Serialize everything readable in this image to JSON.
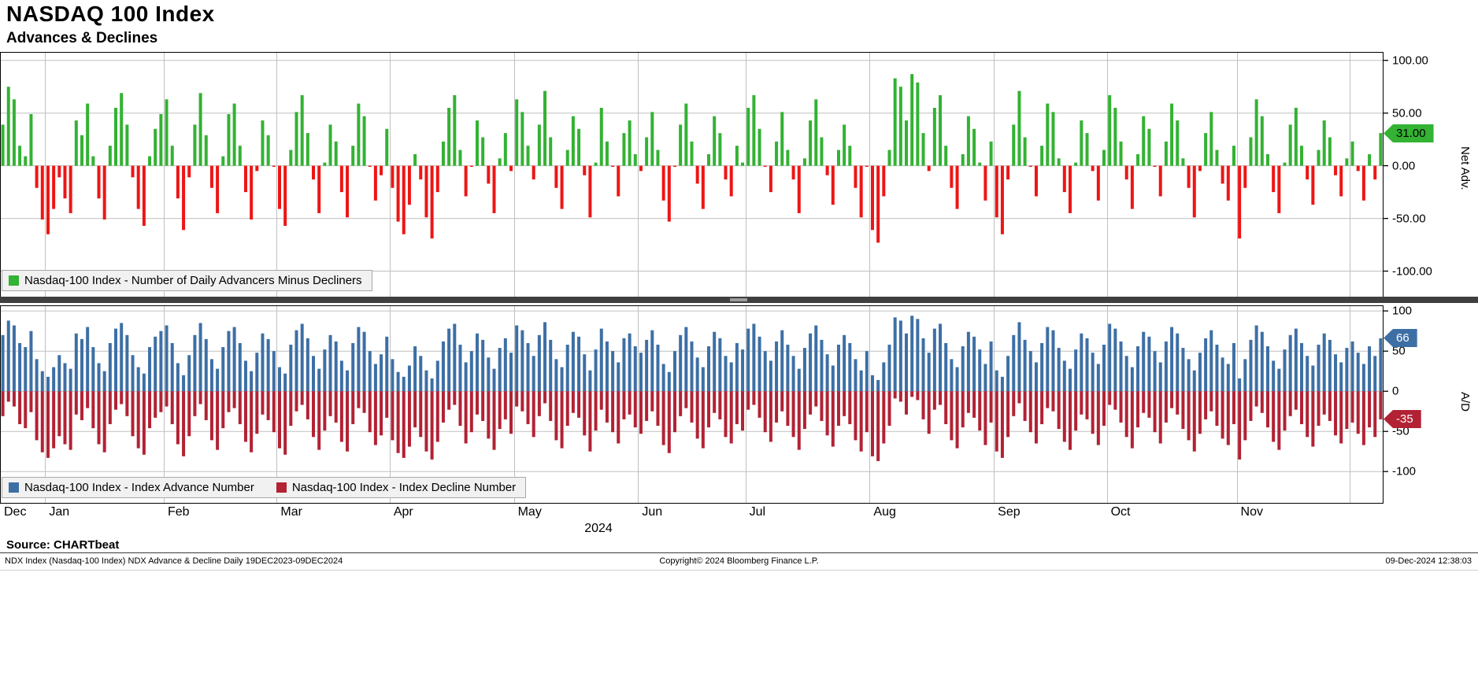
{
  "title": "NASDAQ 100 Index",
  "subtitle": "Advances & Declines",
  "source": "Source: CHARTbeat",
  "footer": {
    "left": "NDX Index (Nasdaq-100 Index) NDX Advance & Decline Daily 19DEC2023-09DEC2024",
    "center": "Copyright© 2024 Bloomberg Finance L.P.",
    "right": "09-Dec-2024 12:38:03"
  },
  "chart_data": {
    "type": "bar",
    "x_axis": {
      "year_label": "2024",
      "n_points": 245,
      "months": [
        {
          "label": "Dec",
          "start": 0
        },
        {
          "label": "Jan",
          "start": 8
        },
        {
          "label": "Feb",
          "start": 29
        },
        {
          "label": "Mar",
          "start": 49
        },
        {
          "label": "Apr",
          "start": 69
        },
        {
          "label": "May",
          "start": 91
        },
        {
          "label": "Jun",
          "start": 113
        },
        {
          "label": "Jul",
          "start": 132
        },
        {
          "label": "Aug",
          "start": 154
        },
        {
          "label": "Sep",
          "start": 176
        },
        {
          "label": "Oct",
          "start": 196
        },
        {
          "label": "Nov",
          "start": 219
        }
      ],
      "extra_gridlines": [
        239
      ]
    },
    "panels": [
      {
        "name": "net-advances",
        "axis_title": "Net Adv.",
        "ticks": [
          100,
          50,
          0,
          -50,
          -100
        ],
        "tick_labels": [
          "100.00",
          "50.00",
          "0.00",
          "-50.00",
          "-100.00"
        ],
        "ylim": [
          -125,
          108
        ],
        "last_value": "31.00",
        "legend": [
          {
            "label": "Nasdaq-100 Index - Number of Daily Advancers Minus Decliners",
            "color": "#33b233"
          }
        ],
        "series": [
          {
            "name": "Number of Daily Advancers Minus Decliners",
            "color_positive": "#33b233",
            "color_negative": "#ee1515",
            "values": [
              39,
              75,
              63,
              19,
              9,
              49,
              -21,
              -51,
              -65,
              -41,
              -11,
              -31,
              -45,
              43,
              29,
              59,
              9,
              -31,
              -51,
              19,
              55,
              69,
              39,
              -11,
              -41,
              -57,
              9,
              35,
              49,
              63,
              19,
              -31,
              -61,
              -11,
              39,
              69,
              29,
              -21,
              -45,
              9,
              49,
              59,
              19,
              -25,
              -51,
              -5,
              43,
              29,
              -1,
              -41,
              -57,
              15,
              51,
              67,
              31,
              -13,
              -45,
              3,
              39,
              23,
              -25,
              -49,
              19,
              59,
              47,
              -1,
              -33,
              -9,
              35,
              -21,
              -53,
              -65,
              -37,
              11,
              -13,
              -49,
              -69,
              -25,
              23,
              55,
              67,
              15,
              -29,
              -1,
              43,
              27,
              -17,
              -45,
              7,
              31,
              -5,
              63,
              51,
              19,
              -13,
              39,
              71,
              27,
              -21,
              -41,
              15,
              47,
              35,
              -9,
              -49,
              3,
              55,
              23,
              -1,
              -29,
              31,
              43,
              11,
              -5,
              27,
              51,
              15,
              -33,
              -53,
              -1,
              39,
              59,
              23,
              -17,
              -41,
              11,
              47,
              31,
              -13,
              -29,
              19,
              3,
              55,
              67,
              35,
              -1,
              -25,
              23,
              51,
              15,
              -13,
              -45,
              7,
              43,
              63,
              27,
              -9,
              -37,
              15,
              39,
              19,
              -21,
              -49,
              -1,
              -61,
              -73,
              -29,
              15,
              83,
              75,
              43,
              87,
              79,
              31,
              -5,
              55,
              67,
              19,
              -21,
              -41,
              11,
              47,
              35,
              3,
              -33,
              23,
              -49,
              -65,
              -13,
              39,
              71,
              27,
              -1,
              -29,
              19,
              59,
              51,
              7,
              -25,
              -45,
              3,
              43,
              31,
              -5,
              -33,
              15,
              67,
              55,
              23,
              -13,
              -41,
              11,
              47,
              35,
              -1,
              -29,
              23,
              59,
              43,
              7,
              -21,
              -49,
              -5,
              31,
              51,
              15,
              -17,
              -33,
              19,
              -69,
              -21,
              27,
              63,
              47,
              11,
              -25,
              -45,
              3,
              39,
              55,
              19,
              -13,
              -37,
              15,
              43,
              27,
              -9,
              -29,
              7,
              23,
              -5,
              -33,
              11,
              -13,
              31
            ]
          }
        ]
      },
      {
        "name": "advance-decline",
        "axis_title": "A/D",
        "ticks": [
          100,
          50,
          0,
          -50,
          -100
        ],
        "tick_labels": [
          "100",
          "50",
          "0",
          "-50",
          "-100"
        ],
        "ylim": [
          -140,
          107
        ],
        "last_values": {
          "advance": "66",
          "decline": "-35"
        },
        "legend": [
          {
            "label": "Nasdaq-100 Index - Index Advance Number",
            "color": "#3d6fa5"
          },
          {
            "label": "Nasdaq-100 Index - Index Decline Number",
            "color": "#b22234"
          }
        ],
        "series": [
          {
            "name": "Index Advance Number",
            "color": "#3d6fa5",
            "values": [
              70,
              88,
              82,
              60,
              55,
              75,
              40,
              25,
              18,
              30,
              45,
              35,
              28,
              72,
              65,
              80,
              55,
              35,
              25,
              60,
              78,
              85,
              70,
              45,
              30,
              22,
              55,
              68,
              75,
              82,
              60,
              35,
              20,
              45,
              70,
              85,
              65,
              40,
              28,
              55,
              75,
              80,
              60,
              38,
              25,
              48,
              72,
              65,
              50,
              30,
              22,
              58,
              76,
              84,
              66,
              44,
              28,
              52,
              70,
              62,
              38,
              26,
              60,
              80,
              74,
              50,
              34,
              46,
              68,
              40,
              24,
              18,
              32,
              56,
              44,
              26,
              16,
              38,
              62,
              78,
              84,
              58,
              36,
              50,
              72,
              64,
              42,
              28,
              54,
              66,
              48,
              82,
              76,
              60,
              44,
              70,
              86,
              64,
              40,
              30,
              58,
              74,
              68,
              46,
              26,
              52,
              78,
              62,
              50,
              36,
              66,
              72,
              56,
              48,
              64,
              76,
              58,
              34,
              24,
              50,
              70,
              80,
              62,
              42,
              30,
              56,
              74,
              66,
              44,
              36,
              60,
              52,
              78,
              84,
              68,
              50,
              38,
              62,
              76,
              58,
              44,
              28,
              54,
              72,
              82,
              64,
              46,
              32,
              58,
              70,
              60,
              40,
              26,
              50,
              20,
              14,
              36,
              58,
              92,
              88,
              72,
              94,
              90,
              66,
              48,
              78,
              84,
              60,
              40,
              30,
              56,
              74,
              68,
              52,
              34,
              62,
              26,
              18,
              44,
              70,
              86,
              64,
              50,
              36,
              60,
              80,
              76,
              54,
              38,
              28,
              52,
              72,
              66,
              48,
              34,
              58,
              84,
              78,
              62,
              44,
              30,
              56,
              74,
              68,
              50,
              36,
              62,
              80,
              72,
              54,
              40,
              26,
              48,
              66,
              76,
              58,
              42,
              34,
              60,
              16,
              40,
              64,
              82,
              74,
              56,
              38,
              28,
              52,
              70,
              78,
              60,
              44,
              32,
              58,
              72,
              64,
              46,
              36,
              54,
              62,
              48,
              34,
              56,
              44,
              66
            ]
          },
          {
            "name": "Index Decline Number",
            "color": "#b22234",
            "values": [
              -31,
              -13,
              -19,
              -41,
              -46,
              -26,
              -61,
              -76,
              -83,
              -71,
              -56,
              -66,
              -73,
              -29,
              -36,
              -21,
              -46,
              -66,
              -76,
              -41,
              -23,
              -16,
              -31,
              -56,
              -71,
              -79,
              -46,
              -33,
              -26,
              -19,
              -41,
              -66,
              -81,
              -56,
              -31,
              -16,
              -36,
              -61,
              -73,
              -46,
              -26,
              -21,
              -41,
              -63,
              -76,
              -53,
              -29,
              -36,
              -51,
              -71,
              -79,
              -43,
              -25,
              -17,
              -35,
              -57,
              -73,
              -49,
              -31,
              -39,
              -63,
              -75,
              -41,
              -21,
              -27,
              -51,
              -67,
              -55,
              -33,
              -61,
              -77,
              -83,
              -69,
              -45,
              -57,
              -75,
              -85,
              -63,
              -39,
              -23,
              -17,
              -43,
              -65,
              -51,
              -29,
              -37,
              -59,
              -73,
              -47,
              -35,
              -53,
              -19,
              -25,
              -41,
              -57,
              -31,
              -15,
              -37,
              -61,
              -71,
              -43,
              -27,
              -33,
              -55,
              -75,
              -49,
              -23,
              -39,
              -51,
              -65,
              -35,
              -29,
              -45,
              -53,
              -37,
              -25,
              -43,
              -67,
              -77,
              -51,
              -31,
              -21,
              -39,
              -59,
              -71,
              -45,
              -27,
              -35,
              -57,
              -65,
              -41,
              -49,
              -23,
              -17,
              -33,
              -51,
              -63,
              -39,
              -25,
              -43,
              -57,
              -73,
              -47,
              -29,
              -19,
              -37,
              -55,
              -69,
              -43,
              -31,
              -41,
              -61,
              -75,
              -51,
              -81,
              -87,
              -65,
              -43,
              -9,
              -13,
              -29,
              -7,
              -11,
              -35,
              -53,
              -23,
              -17,
              -41,
              -61,
              -71,
              -45,
              -27,
              -33,
              -49,
              -67,
              -39,
              -75,
              -83,
              -57,
              -31,
              -15,
              -37,
              -51,
              -65,
              -41,
              -21,
              -25,
              -47,
              -63,
              -73,
              -49,
              -29,
              -35,
              -53,
              -67,
              -43,
              -17,
              -23,
              -39,
              -57,
              -71,
              -45,
              -27,
              -33,
              -51,
              -65,
              -39,
              -21,
              -29,
              -47,
              -61,
              -75,
              -53,
              -35,
              -25,
              -43,
              -59,
              -67,
              -41,
              -85,
              -61,
              -37,
              -19,
              -27,
              -45,
              -63,
              -73,
              -49,
              -31,
              -23,
              -41,
              -57,
              -69,
              -43,
              -29,
              -37,
              -55,
              -65,
              -47,
              -39,
              -53,
              -67,
              -45,
              -57,
              -35
            ]
          }
        ]
      }
    ],
    "grid_color": "#c0c0c0",
    "frame_color": "#000000"
  }
}
